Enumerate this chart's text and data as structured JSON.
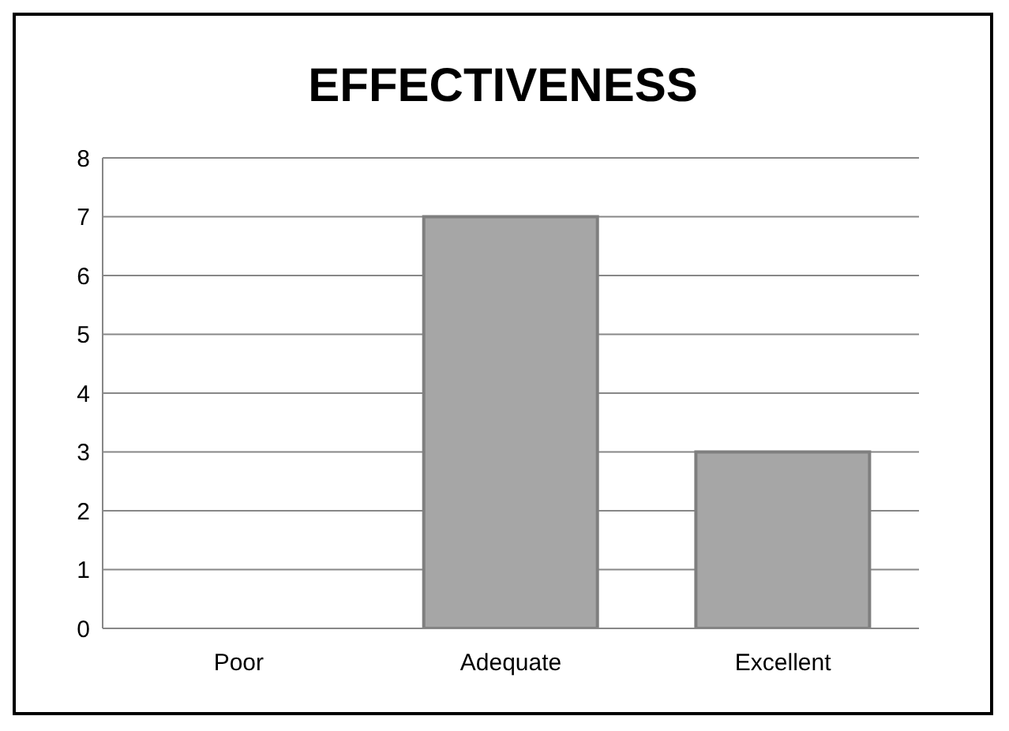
{
  "chart_data": {
    "type": "bar",
    "title": "EFFECTIVENESS",
    "categories": [
      "Poor",
      "Adequate",
      "Excellent"
    ],
    "values": [
      0,
      7,
      3
    ],
    "color": "#a6a6a6",
    "ylim": [
      0,
      8
    ],
    "yticks": [
      0,
      1,
      2,
      3,
      4,
      5,
      6,
      7,
      8
    ],
    "grid": "y",
    "legend": false
  }
}
